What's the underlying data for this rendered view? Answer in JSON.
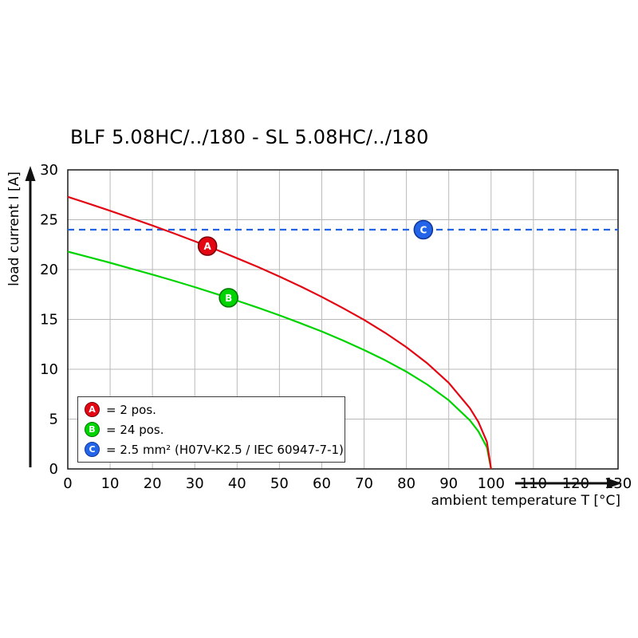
{
  "page": {
    "background": "#ffffff"
  },
  "chart_data": {
    "type": "line",
    "title": "BLF 5.08HC/../180 - SL 5.08HC/../180",
    "xlabel": "ambient temperature T [°C]",
    "ylabel": "load current I [A]",
    "xlim": [
      0,
      130
    ],
    "ylim": [
      0,
      30
    ],
    "xticks": [
      0,
      10,
      20,
      30,
      40,
      50,
      60,
      70,
      80,
      90,
      100,
      110,
      120,
      130
    ],
    "yticks": [
      0,
      5,
      10,
      15,
      20,
      25,
      30
    ],
    "grid": true,
    "grid_color": "#b9b9b9",
    "series": [
      {
        "name": "A",
        "legend": "= 2 pos.",
        "color": "#e30613",
        "edge": "#7a0008",
        "marker_at": {
          "x": 33,
          "y": 22.35
        },
        "points": [
          [
            0,
            27.3
          ],
          [
            5,
            26.61
          ],
          [
            10,
            25.9
          ],
          [
            15,
            25.16
          ],
          [
            20,
            24.42
          ],
          [
            25,
            23.64
          ],
          [
            30,
            22.84
          ],
          [
            35,
            22.01
          ],
          [
            40,
            21.14
          ],
          [
            45,
            20.25
          ],
          [
            50,
            19.3
          ],
          [
            55,
            18.31
          ],
          [
            60,
            17.26
          ],
          [
            65,
            16.14
          ],
          [
            70,
            14.95
          ],
          [
            75,
            13.65
          ],
          [
            80,
            12.21
          ],
          [
            85,
            10.57
          ],
          [
            90,
            8.63
          ],
          [
            95,
            6.1
          ],
          [
            97,
            4.73
          ],
          [
            99,
            2.73
          ],
          [
            100,
            0
          ]
        ]
      },
      {
        "name": "B",
        "legend": "= 24 pos.",
        "color": "#00d400",
        "edge": "#007700",
        "marker_at": {
          "x": 38,
          "y": 17.17
        },
        "points": [
          [
            0,
            21.8
          ],
          [
            5,
            21.25
          ],
          [
            10,
            20.68
          ],
          [
            15,
            20.09
          ],
          [
            20,
            19.5
          ],
          [
            25,
            18.88
          ],
          [
            30,
            18.24
          ],
          [
            35,
            17.57
          ],
          [
            40,
            16.88
          ],
          [
            45,
            16.17
          ],
          [
            50,
            15.41
          ],
          [
            55,
            14.62
          ],
          [
            60,
            13.79
          ],
          [
            65,
            12.89
          ],
          [
            70,
            11.93
          ],
          [
            75,
            10.9
          ],
          [
            80,
            9.75
          ],
          [
            85,
            8.44
          ],
          [
            90,
            6.89
          ],
          [
            95,
            4.87
          ],
          [
            97,
            3.78
          ],
          [
            99,
            2.18
          ],
          [
            100,
            0
          ]
        ]
      },
      {
        "name": "C",
        "legend": "= 2.5 mm² (H07V-K2.5 / IEC 60947-7-1)",
        "color": "#2364e8",
        "edge": "#12379c",
        "style": "dashed",
        "value": 24,
        "marker_at": {
          "x": 84,
          "y": 24
        }
      }
    ]
  }
}
